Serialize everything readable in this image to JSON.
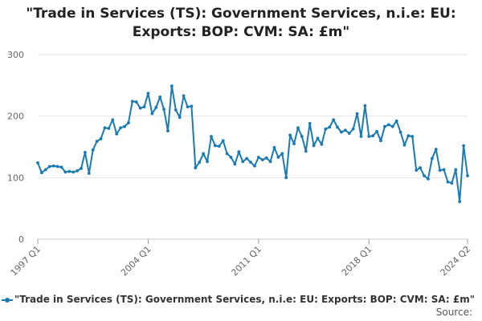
{
  "chart_data": {
    "type": "line",
    "title_lines": [
      "\"Trade in Services (TS): Government Services, n.i.e: EU:",
      "Exports: BOP: CVM: SA: £m\""
    ],
    "ylim": [
      0,
      300
    ],
    "yticks": [
      0,
      100,
      200,
      300
    ],
    "x_tick_labels": [
      {
        "index": 0,
        "label": "1997 Q1"
      },
      {
        "index": 28,
        "label": "2004 Q1"
      },
      {
        "index": 56,
        "label": "2011 Q1"
      },
      {
        "index": 84,
        "label": "2018 Q1"
      },
      {
        "index": 109,
        "label": "2024 Q2"
      }
    ],
    "grid": true,
    "series": [
      {
        "name": "\"Trade in Services (TS): Government Services, n.i.e: EU: Exports: BOP: CVM: SA: £m\"",
        "color": "#1a7ab4",
        "start": "1997 Q1",
        "values": [
          124,
          108,
          113,
          118,
          119,
          118,
          117,
          109,
          110,
          109,
          111,
          115,
          141,
          107,
          145,
          159,
          163,
          181,
          180,
          194,
          171,
          181,
          183,
          189,
          224,
          223,
          213,
          215,
          237,
          204,
          214,
          231,
          211,
          176,
          249,
          210,
          198,
          233,
          215,
          216,
          116,
          125,
          139,
          126,
          167,
          152,
          151,
          160,
          139,
          133,
          122,
          142,
          126,
          131,
          125,
          119,
          133,
          129,
          132,
          126,
          149,
          133,
          139,
          100,
          169,
          155,
          181,
          167,
          143,
          188,
          152,
          164,
          154,
          179,
          182,
          194,
          182,
          174,
          177,
          172,
          179,
          204,
          167,
          217,
          167,
          168,
          175,
          160,
          183,
          186,
          183,
          192,
          174,
          153,
          168,
          167,
          112,
          116,
          103,
          98,
          131,
          146,
          112,
          113,
          93,
          91,
          113,
          61,
          152,
          103
        ]
      }
    ],
    "legend_label": "\"Trade in Services (TS): Government Services, n.i.e: EU: Exports: BOP: CVM: SA: £m\"",
    "source_label": "Source:"
  }
}
